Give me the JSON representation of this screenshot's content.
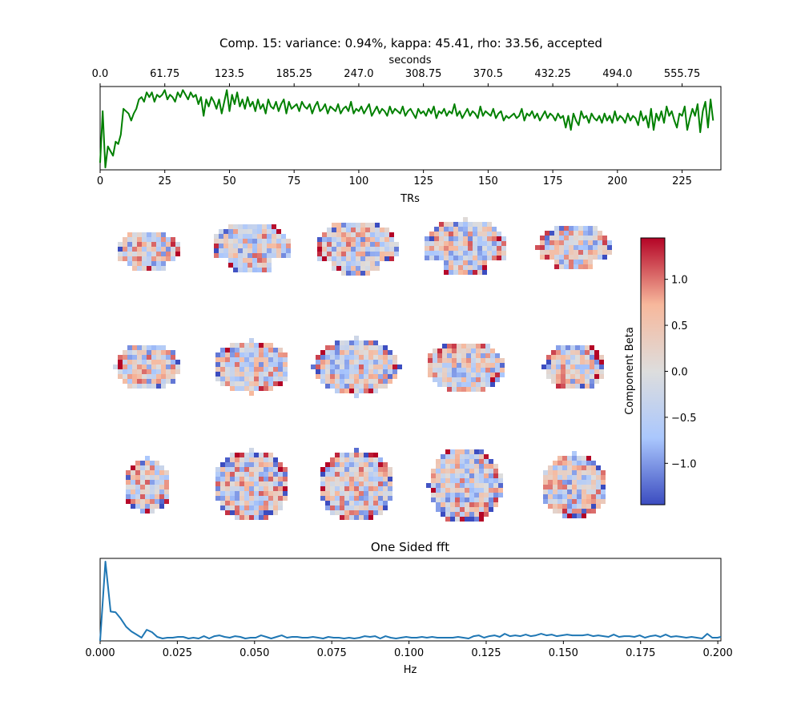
{
  "figure": {
    "title": "Comp. 15: variance: 0.94%, kappa: 45.41, rho: 33.56, accepted"
  },
  "chart_data": [
    {
      "id": "timeseries",
      "type": "line",
      "title": "",
      "xlabel": "TRs",
      "x2label": "seconds",
      "xlim": [
        0,
        240
      ],
      "x_ticks": [
        0,
        25,
        50,
        75,
        100,
        125,
        150,
        175,
        200,
        225
      ],
      "x_tick_labels": [
        "0",
        "25",
        "50",
        "75",
        "100",
        "125",
        "150",
        "175",
        "200",
        "225"
      ],
      "x2_tick_labels": [
        "0.0",
        "61.75",
        "123.5",
        "185.25",
        "247.0",
        "308.75",
        "370.5",
        "432.25",
        "494.0",
        "555.75"
      ],
      "series_color": "#008000",
      "series": [
        {
          "values": [
            -1.8,
            0.4,
            -2.0,
            -1.1,
            -1.3,
            -1.5,
            -0.9,
            -1.0,
            -0.6,
            0.5,
            0.4,
            0.3,
            0.0,
            0.3,
            0.5,
            0.9,
            1.0,
            0.8,
            1.2,
            1.0,
            1.2,
            0.8,
            1.1,
            1.0,
            1.1,
            1.3,
            0.9,
            1.1,
            1.0,
            0.8,
            1.2,
            1.0,
            1.3,
            1.1,
            0.9,
            1.2,
            1.0,
            1.1,
            0.7,
            1.0,
            0.2,
            0.9,
            0.6,
            1.0,
            0.8,
            0.5,
            0.9,
            0.3,
            0.8,
            1.3,
            0.4,
            1.1,
            0.7,
            1.2,
            0.6,
            0.9,
            0.5,
            1.0,
            0.6,
            0.8,
            0.4,
            0.9,
            0.5,
            0.7,
            0.3,
            0.9,
            0.6,
            0.5,
            0.8,
            0.4,
            0.7,
            0.9,
            0.3,
            0.8,
            0.5,
            0.6,
            0.7,
            0.4,
            0.8,
            0.6,
            0.5,
            0.7,
            0.3,
            0.6,
            0.8,
            0.4,
            0.5,
            0.7,
            0.3,
            0.6,
            0.5,
            0.4,
            0.7,
            0.3,
            0.5,
            0.6,
            0.4,
            0.8,
            0.3,
            0.5,
            0.4,
            0.6,
            0.3,
            0.5,
            0.7,
            0.2,
            0.4,
            0.6,
            0.3,
            0.5,
            0.4,
            0.2,
            0.6,
            0.3,
            0.5,
            0.4,
            0.3,
            0.6,
            0.2,
            0.4,
            0.5,
            0.3,
            0.1,
            0.5,
            0.3,
            0.4,
            0.2,
            0.5,
            0.3,
            0.6,
            0.1,
            0.4,
            0.3,
            0.5,
            0.2,
            0.4,
            0.3,
            0.7,
            0.2,
            0.4,
            0.1,
            0.3,
            0.5,
            0.2,
            0.4,
            0.3,
            0.1,
            0.6,
            0.2,
            0.4,
            0.3,
            0.2,
            0.5,
            0.1,
            0.3,
            0.4,
            0.0,
            0.2,
            0.1,
            0.2,
            0.3,
            0.1,
            0.2,
            0.5,
            0.0,
            0.3,
            0.2,
            0.4,
            0.1,
            0.3,
            0.0,
            0.2,
            0.4,
            0.1,
            0.3,
            0.2,
            0.0,
            0.3,
            0.1,
            0.2,
            -0.3,
            0.2,
            -0.4,
            0.3,
            0.0,
            -0.2,
            0.4,
            0.1,
            0.2,
            -0.1,
            0.3,
            0.1,
            0.0,
            0.2,
            -0.1,
            0.3,
            0.0,
            0.2,
            -0.1,
            0.4,
            0.0,
            0.2,
            0.1,
            -0.1,
            0.3,
            0.0,
            0.2,
            0.1,
            -0.2,
            0.4,
            0.0,
            0.2,
            -0.3,
            0.5,
            -0.4,
            0.3,
            0.0,
            0.4,
            -0.1,
            0.6,
            0.2,
            0.4,
            0.0,
            -0.3,
            0.3,
            0.2,
            0.6,
            -0.4,
            0.1,
            0.5,
            0.2,
            0.7,
            -0.5,
            0.4,
            0.8,
            -0.3,
            0.9,
            0.0
          ]
        }
      ],
      "ylim": [
        -2.1,
        1.45
      ]
    },
    {
      "id": "brain-maps",
      "type": "heatmap",
      "rows": 3,
      "columns": 5,
      "colormap": [
        "#3b4cc0",
        "#aac7fd",
        "#dddddd",
        "#f7b89c",
        "#b40426"
      ],
      "colorbar": {
        "label": "Component Beta",
        "vmin": -1.45,
        "vmax": 1.45,
        "ticks": [
          1.0,
          0.5,
          0.0,
          -0.5,
          -1.0
        ],
        "tick_labels": [
          "1.0",
          "0.5",
          "0.0",
          "−0.5",
          "−1.0"
        ]
      }
    },
    {
      "id": "fft",
      "type": "line",
      "title": "One Sided fft",
      "xlabel": "Hz",
      "xlim": [
        0,
        0.201
      ],
      "x_ticks": [
        0.0,
        0.025,
        0.05,
        0.075,
        0.1,
        0.125,
        0.15,
        0.175,
        0.2
      ],
      "x_tick_labels": [
        "0.000",
        "0.025",
        "0.050",
        "0.075",
        "0.100",
        "0.125",
        "0.150",
        "0.175",
        "0.200"
      ],
      "series_color": "#1f77b4",
      "series": [
        {
          "x": [
            0.0,
            0.0017,
            0.0034,
            0.005,
            0.0067,
            0.0084,
            0.0101,
            0.0118,
            0.0134,
            0.0151,
            0.0168,
            0.0185,
            0.0202,
            0.0218,
            0.0235,
            0.0252,
            0.0269,
            0.0286,
            0.0302,
            0.0319,
            0.0336,
            0.0353,
            0.037,
            0.0386,
            0.0403,
            0.042,
            0.0437,
            0.0454,
            0.047,
            0.0487,
            0.0504,
            0.0521,
            0.0538,
            0.0554,
            0.0571,
            0.0588,
            0.0605,
            0.0622,
            0.0638,
            0.0655,
            0.0672,
            0.0689,
            0.0706,
            0.0722,
            0.0739,
            0.0756,
            0.0773,
            0.079,
            0.0806,
            0.0823,
            0.084,
            0.0857,
            0.0874,
            0.089,
            0.0907,
            0.0924,
            0.0941,
            0.0958,
            0.0974,
            0.0991,
            0.1008,
            0.1025,
            0.1042,
            0.1058,
            0.1075,
            0.1092,
            0.1109,
            0.1126,
            0.1142,
            0.1159,
            0.1176,
            0.1193,
            0.121,
            0.1226,
            0.1243,
            0.126,
            0.1277,
            0.1294,
            0.131,
            0.1327,
            0.1344,
            0.1361,
            0.1378,
            0.1394,
            0.1411,
            0.1428,
            0.1445,
            0.1462,
            0.1478,
            0.1495,
            0.1512,
            0.1529,
            0.1546,
            0.1562,
            0.1579,
            0.1596,
            0.1613,
            0.163,
            0.1646,
            0.1663,
            0.168,
            0.1697,
            0.1714,
            0.173,
            0.1747,
            0.1764,
            0.1781,
            0.1798,
            0.1814,
            0.1831,
            0.1848,
            0.1865,
            0.1882,
            0.1898,
            0.1915,
            0.1932,
            0.1949,
            0.1966,
            0.1982,
            0.1999,
            0.2016
          ],
          "values": [
            0.0,
            1.0,
            0.37,
            0.36,
            0.28,
            0.18,
            0.12,
            0.08,
            0.04,
            0.14,
            0.11,
            0.05,
            0.03,
            0.04,
            0.04,
            0.05,
            0.05,
            0.03,
            0.04,
            0.03,
            0.06,
            0.03,
            0.06,
            0.07,
            0.05,
            0.04,
            0.06,
            0.05,
            0.03,
            0.04,
            0.04,
            0.07,
            0.05,
            0.03,
            0.05,
            0.07,
            0.04,
            0.05,
            0.05,
            0.04,
            0.04,
            0.05,
            0.04,
            0.03,
            0.05,
            0.04,
            0.04,
            0.03,
            0.04,
            0.03,
            0.04,
            0.06,
            0.05,
            0.06,
            0.03,
            0.06,
            0.04,
            0.03,
            0.04,
            0.05,
            0.04,
            0.04,
            0.05,
            0.04,
            0.05,
            0.04,
            0.04,
            0.04,
            0.04,
            0.05,
            0.04,
            0.03,
            0.06,
            0.07,
            0.04,
            0.06,
            0.07,
            0.05,
            0.09,
            0.06,
            0.07,
            0.06,
            0.08,
            0.06,
            0.07,
            0.09,
            0.07,
            0.08,
            0.06,
            0.07,
            0.08,
            0.07,
            0.07,
            0.07,
            0.08,
            0.06,
            0.07,
            0.06,
            0.05,
            0.08,
            0.05,
            0.06,
            0.06,
            0.05,
            0.07,
            0.04,
            0.06,
            0.07,
            0.05,
            0.08,
            0.05,
            0.06,
            0.05,
            0.04,
            0.05,
            0.04,
            0.03,
            0.09,
            0.04,
            0.04,
            0.05
          ]
        }
      ],
      "ylim": [
        0,
        1.04
      ]
    }
  ]
}
